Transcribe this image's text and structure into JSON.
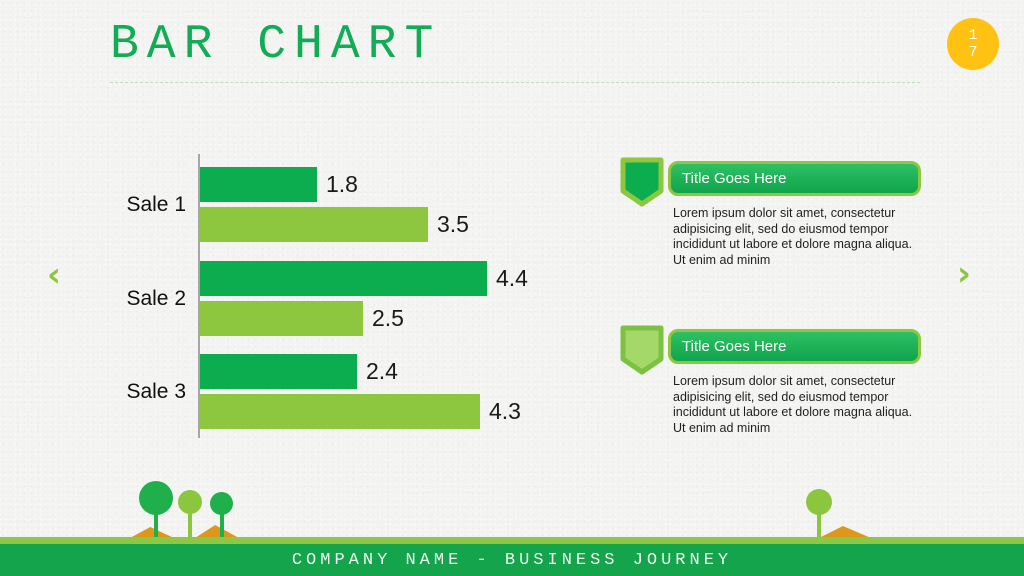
{
  "slide": {
    "title": "BAR CHART",
    "page_number_top": "1",
    "page_number_bottom": "7",
    "footer_text": "COMPANY NAME - BUSINESS JOURNEY"
  },
  "nav": {
    "prev_symbol": "‹",
    "next_symbol": "›"
  },
  "chart_data": {
    "type": "bar",
    "orientation": "horizontal",
    "title": "",
    "categories": [
      "Sale 1",
      "Sale 2",
      "Sale 3"
    ],
    "series": [
      {
        "name": "dark-green-series",
        "color": "#0CAD4F",
        "values": [
          1.8,
          4.4,
          2.4
        ]
      },
      {
        "name": "light-green-series",
        "color": "#8DC63F",
        "values": [
          3.5,
          2.5,
          4.3
        ]
      }
    ],
    "xlim": [
      0,
      4.6
    ],
    "data_labels": true,
    "legend": "none",
    "grid": false,
    "axis_color": "#A6A6A6"
  },
  "info_blocks": [
    {
      "icon": "shield-badge-icon",
      "icon_fill": "#0CAD4F",
      "icon_stroke": "#8DC63F",
      "title": "Title Goes Here",
      "body": "Lorem ipsum dolor sit amet, consectetur adipisicing elit, sed do eiusmod tempor incididunt ut labore et dolore magna aliqua. Ut enim ad minim"
    },
    {
      "icon": "shield-badge-icon",
      "icon_fill": "#A4D868",
      "icon_stroke": "#7CC142",
      "title": "Title Goes Here",
      "body": "Lorem ipsum dolor sit amet, consectetur adipisicing elit, sed do eiusmod tempor incididunt ut labore et dolore magna aliqua. Ut enim ad minim"
    }
  ],
  "colors": {
    "title_green": "#12AC56",
    "accent_light_green": "#8CC63F",
    "footer_green": "#14A44B",
    "page_badge_yellow": "#FFC212",
    "mound_orange": "#DD981B",
    "tree_green": "#1FAF4B",
    "value_text": "#1A1A1A",
    "background": "#F3F3F1"
  }
}
